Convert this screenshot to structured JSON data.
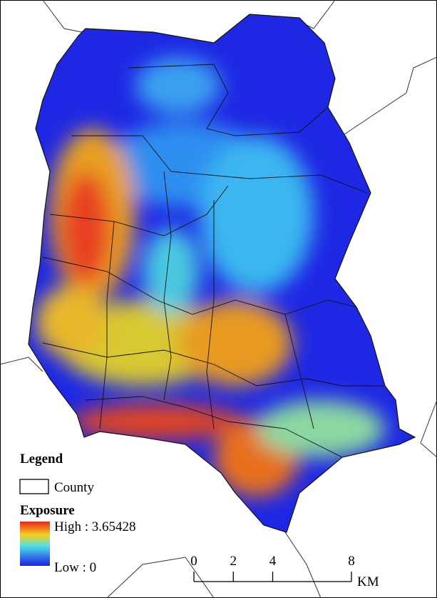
{
  "legend": {
    "title": "Legend",
    "county": "County",
    "layer": "Exposure",
    "high": "High : 3.65428",
    "low": "Low : 0"
  },
  "scale_bar": {
    "ticks": [
      0,
      2,
      4,
      8
    ],
    "unit": "KM"
  }
}
